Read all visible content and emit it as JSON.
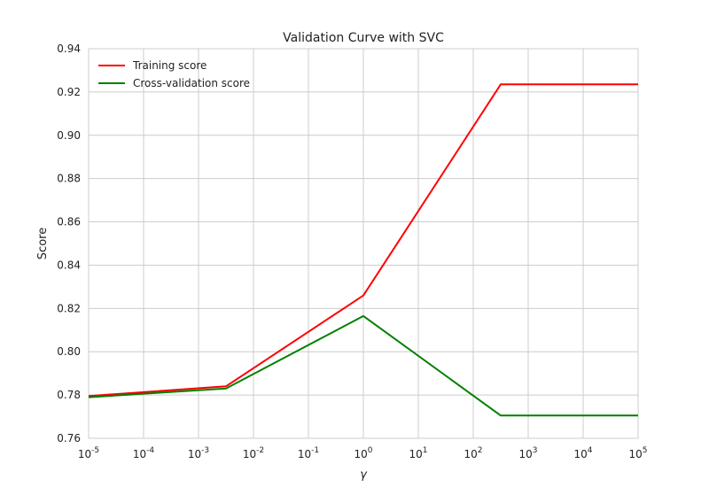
{
  "chart_data": {
    "type": "line",
    "title": "Validation Curve with SVC",
    "xlabel": "γ",
    "ylabel": "Score",
    "x_scale": "log",
    "xlim": [
      1e-05,
      100000.0
    ],
    "ylim": [
      0.76,
      0.94
    ],
    "grid": true,
    "legend_position": "top-left",
    "x_ticks": [
      {
        "value": 1e-05,
        "base": "10",
        "exp": "-5"
      },
      {
        "value": 0.0001,
        "base": "10",
        "exp": "-4"
      },
      {
        "value": 0.001,
        "base": "10",
        "exp": "-3"
      },
      {
        "value": 0.01,
        "base": "10",
        "exp": "-2"
      },
      {
        "value": 0.1,
        "base": "10",
        "exp": "-1"
      },
      {
        "value": 1,
        "base": "10",
        "exp": "0"
      },
      {
        "value": 10,
        "base": "10",
        "exp": "1"
      },
      {
        "value": 100,
        "base": "10",
        "exp": "2"
      },
      {
        "value": 1000,
        "base": "10",
        "exp": "3"
      },
      {
        "value": 10000,
        "base": "10",
        "exp": "4"
      },
      {
        "value": 100000,
        "base": "10",
        "exp": "5"
      }
    ],
    "y_ticks": [
      "0.76",
      "0.78",
      "0.80",
      "0.82",
      "0.84",
      "0.86",
      "0.88",
      "0.90",
      "0.92",
      "0.94"
    ],
    "x": [
      1e-05,
      0.00316,
      1,
      316.2,
      100000
    ],
    "series": [
      {
        "name": "Training score",
        "color": "#ff0000",
        "values": [
          0.7795,
          0.784,
          0.826,
          0.9235,
          0.9235
        ]
      },
      {
        "name": "Cross-validation score",
        "color": "#008000",
        "values": [
          0.779,
          0.783,
          0.8165,
          0.7705,
          0.7705
        ]
      }
    ],
    "colors": {
      "grid": "#cccccc",
      "frame": "#cccccc",
      "text": "#222222"
    }
  }
}
